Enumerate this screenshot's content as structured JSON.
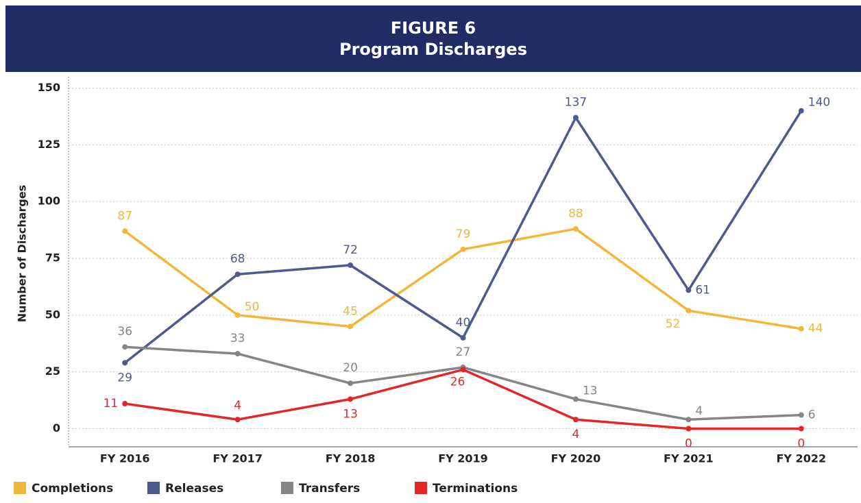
{
  "chart_data": {
    "type": "line",
    "title": "FIGURE 6",
    "subtitle": "Program Discharges",
    "y_label": "Number of Discharges",
    "categories": [
      "FY 2016",
      "FY 2017",
      "FY 2018",
      "FY 2019",
      "FY 2020",
      "FY 2021",
      "FY 2022"
    ],
    "series": [
      {
        "name": "Completions",
        "color": "#f2b63a",
        "values": [
          87,
          50,
          45,
          79,
          88,
          52,
          44
        ]
      },
      {
        "name": "Releases",
        "color": "#4e5a8e",
        "values": [
          29,
          68,
          72,
          40,
          137,
          61,
          140
        ]
      },
      {
        "name": "Transfers",
        "color": "#858585",
        "values": [
          36,
          33,
          20,
          27,
          13,
          4,
          6
        ]
      },
      {
        "name": "Terminations",
        "color": "#e32626",
        "values": [
          11,
          4,
          13,
          26,
          4,
          0,
          0
        ]
      }
    ],
    "ylim": [
      -8,
      155
    ],
    "yticks": [
      0,
      25,
      50,
      75,
      100,
      125,
      150
    ],
    "grid": true,
    "legend": "bottom"
  }
}
